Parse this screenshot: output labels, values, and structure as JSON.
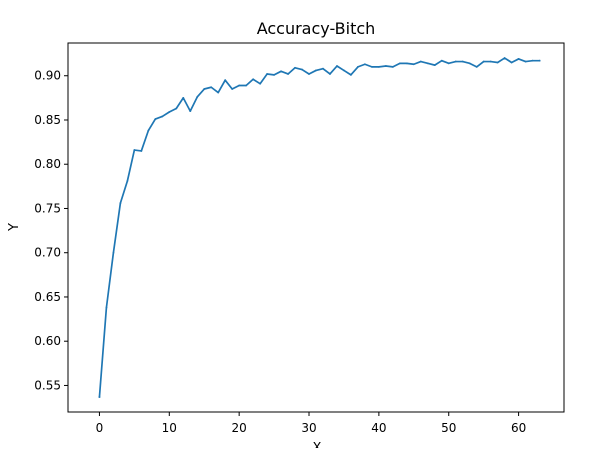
{
  "chart_data": {
    "type": "line",
    "title": "Accuracy-Bitch",
    "xlabel": "X",
    "ylabel": "Y",
    "xlim": [
      -4.5,
      66.5
    ],
    "ylim": [
      0.52,
      0.937
    ],
    "x_ticks": [
      0,
      10,
      20,
      30,
      40,
      50,
      60
    ],
    "y_ticks": [
      0.55,
      0.6,
      0.65,
      0.7,
      0.75,
      0.8,
      0.85,
      0.9
    ],
    "grid": false,
    "series": [
      {
        "color": "#1f77b4",
        "x": [
          0,
          1,
          2,
          3,
          4,
          5,
          6,
          7,
          8,
          9,
          10,
          11,
          12,
          13,
          14,
          15,
          16,
          17,
          18,
          19,
          20,
          21,
          22,
          23,
          24,
          25,
          26,
          27,
          28,
          29,
          30,
          31,
          32,
          33,
          34,
          35,
          36,
          37,
          38,
          39,
          40,
          41,
          42,
          43,
          44,
          45,
          46,
          47,
          48,
          49,
          50,
          51,
          52,
          53,
          54,
          55,
          56,
          57,
          58,
          59,
          60,
          61,
          62,
          63
        ],
        "values": [
          0.537,
          0.638,
          0.7,
          0.756,
          0.781,
          0.816,
          0.815,
          0.838,
          0.851,
          0.854,
          0.859,
          0.863,
          0.875,
          0.86,
          0.876,
          0.885,
          0.887,
          0.881,
          0.895,
          0.885,
          0.889,
          0.889,
          0.896,
          0.891,
          0.902,
          0.901,
          0.905,
          0.902,
          0.909,
          0.907,
          0.902,
          0.906,
          0.908,
          0.902,
          0.911,
          0.906,
          0.901,
          0.91,
          0.913,
          0.91,
          0.91,
          0.911,
          0.91,
          0.914,
          0.914,
          0.913,
          0.916,
          0.914,
          0.912,
          0.917,
          0.914,
          0.916,
          0.916,
          0.914,
          0.91,
          0.916,
          0.916,
          0.915,
          0.92,
          0.915,
          0.919,
          0.916,
          0.917,
          0.917
        ]
      }
    ]
  }
}
